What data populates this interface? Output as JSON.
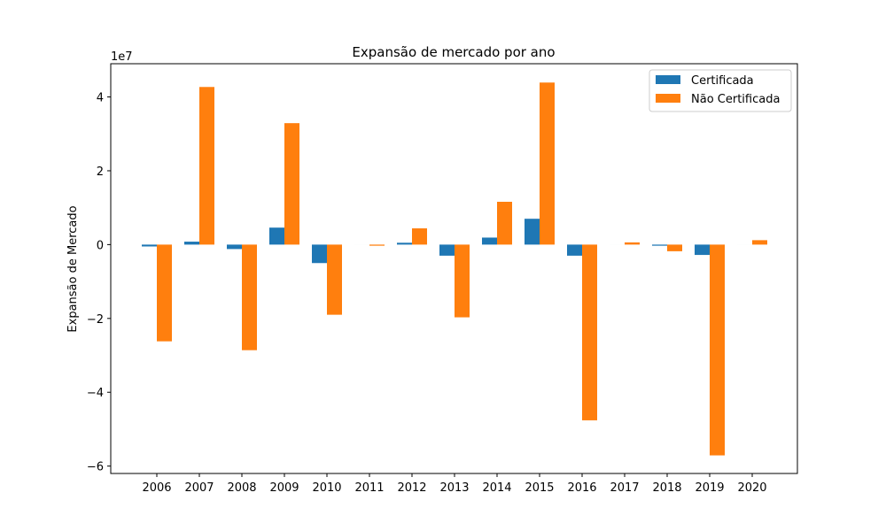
{
  "chart_data": {
    "type": "bar",
    "title": "Expansão de mercado por ano",
    "xlabel": "",
    "ylabel": "Expansão de Mercado",
    "scale_label": "1e7",
    "categories": [
      "2006",
      "2007",
      "2008",
      "2009",
      "2010",
      "2011",
      "2012",
      "2013",
      "2014",
      "2015",
      "2016",
      "2017",
      "2018",
      "2019",
      "2020"
    ],
    "series": [
      {
        "name": "Certificada",
        "color": "#1f77b4",
        "values": [
          -0.05,
          0.08,
          -0.12,
          0.46,
          -0.5,
          0.0,
          0.05,
          -0.3,
          0.19,
          0.7,
          -0.3,
          0.0,
          -0.03,
          -0.28,
          0.0
        ]
      },
      {
        "name": "Não Certificada",
        "color": "#ff7f0e",
        "values": [
          -2.62,
          4.27,
          -2.86,
          3.29,
          -1.9,
          -0.03,
          0.44,
          -1.97,
          1.16,
          4.39,
          -4.76,
          0.06,
          -0.18,
          -5.71,
          0.12
        ]
      }
    ],
    "yticks": [
      "−6",
      "−4",
      "−2",
      "0",
      "2",
      "4"
    ],
    "ylim": [
      -6.2,
      4.9
    ],
    "grid": false,
    "legend_position": "top-right"
  }
}
